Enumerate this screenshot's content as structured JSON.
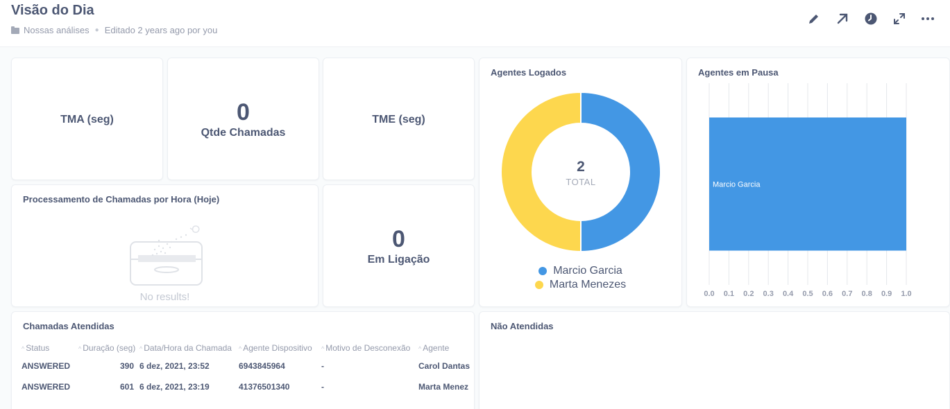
{
  "header": {
    "title": "Visão do Dia",
    "collection": "Nossas análises",
    "edited": "Editado 2 years ago por you",
    "actions": [
      {
        "name": "edit",
        "icon": "pencil-icon"
      },
      {
        "name": "share",
        "icon": "arrow-up-right-icon"
      },
      {
        "name": "auto-refresh",
        "icon": "clock-icon"
      },
      {
        "name": "fullscreen",
        "icon": "expand-icon"
      },
      {
        "name": "more",
        "icon": "ellipsis-icon"
      }
    ]
  },
  "cards": {
    "tma": {
      "value": "",
      "label": "TMA (seg)"
    },
    "qtde": {
      "value": "0",
      "label": "Qtde Chamadas"
    },
    "tme": {
      "value": "",
      "label": "TME (seg)"
    },
    "em_ligacao": {
      "value": "0",
      "label": "Em Ligação"
    },
    "processamento": {
      "title": "Processamento de Chamadas por Hora (Hoje)",
      "empty_text": "No results!"
    },
    "nao_atendidas": {
      "title": "Não Atendidas"
    }
  },
  "chart_data": [
    {
      "type": "pie",
      "title": "Agentes Logados",
      "total_value": "2",
      "total_label": "TOTAL",
      "slices": [
        {
          "name": "Marcio Garcia",
          "value": 1,
          "color": "#4397e4"
        },
        {
          "name": "Marta Menezes",
          "value": 1,
          "color": "#fdd74e"
        }
      ]
    },
    {
      "type": "bar",
      "orientation": "horizontal",
      "title": "Agentes em Pausa",
      "categories": [
        "Marcio Garcia"
      ],
      "values": [
        1.0
      ],
      "xlim": [
        0,
        1.0
      ],
      "xticks": [
        "0.0",
        "0.1",
        "0.2",
        "0.3",
        "0.4",
        "0.5",
        "0.6",
        "0.7",
        "0.8",
        "0.9",
        "1.0"
      ],
      "color": "#4397e4",
      "grid": true
    }
  ],
  "table": {
    "title": "Chamadas Atendidas",
    "columns": [
      "Status",
      "Duração (seg)",
      "Data/Hora da Chamada",
      "Agente Dispositivo",
      "Motivo de Desconexão",
      "Agente"
    ],
    "rows": [
      [
        "ANSWERED",
        "390",
        "6 dez, 2021, 23:52",
        "6943845964",
        "-",
        "Carol Dantas"
      ],
      [
        "ANSWERED",
        "601",
        "6 dez, 2021, 23:19",
        "41376501340",
        "-",
        "Marta Menez"
      ]
    ]
  }
}
